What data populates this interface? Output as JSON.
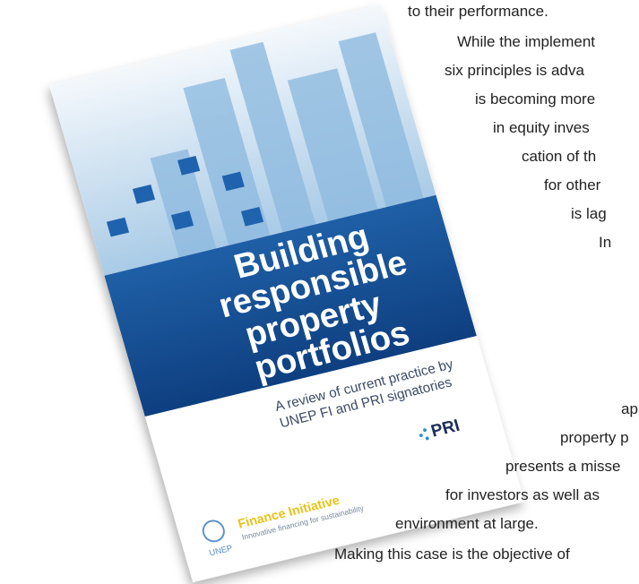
{
  "cover": {
    "title_lines": [
      "Building",
      "responsible",
      "property",
      "portfolios"
    ],
    "subtitle_lines": [
      "A review of current practice by",
      "UNEP FI and PRI signatories"
    ],
    "pri_logo": "PRI",
    "unep": "UNEP",
    "finance_initiative": "Finance Initiative",
    "tagline": "Innovative financing for sustainability"
  },
  "body_text": {
    "lines": [
      "to their performance.",
      "While the implement",
      "six principles is adva",
      "is becoming more",
      "in equity inves",
      "cation of th",
      "for other",
      "is lag",
      "In",
      "ap",
      "property p",
      "presents a misse",
      "for investors as well as",
      "environment at large.",
      "Making this case is the objective of"
    ]
  }
}
